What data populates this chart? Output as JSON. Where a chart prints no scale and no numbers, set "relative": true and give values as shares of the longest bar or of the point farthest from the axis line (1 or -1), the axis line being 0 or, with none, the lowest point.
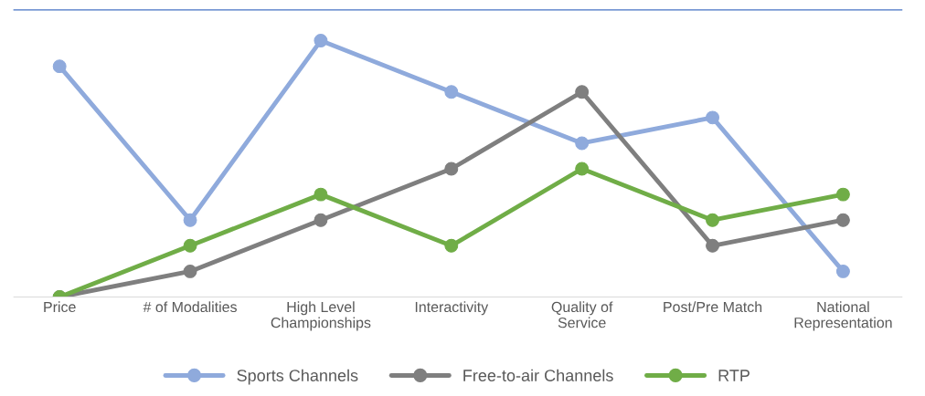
{
  "chart_data": {
    "type": "line",
    "relative": true,
    "categories": [
      "Price",
      "# of Modalities",
      "High Level\nChampionships",
      "Interactivity",
      "Quality of\nService",
      "Post/Pre Match",
      "National\nRepresentation"
    ],
    "series": [
      {
        "name": "Sports Channels",
        "color": "#8faadc",
        "values": [
          0.9,
          0.3,
          1.0,
          0.8,
          0.6,
          0.7,
          0.1
        ]
      },
      {
        "name": "Free-to-air Channels",
        "color": "#7f7f7f",
        "values": [
          0,
          0.1,
          0.3,
          0.5,
          0.8,
          0.2,
          0.3
        ]
      },
      {
        "name": "RTP",
        "color": "#70ad47",
        "values": [
          0,
          0.2,
          0.4,
          0.2,
          0.5,
          0.3,
          0.4
        ]
      }
    ],
    "marker": "circle",
    "line_style": "solid",
    "legend": "bottom",
    "grid": false
  }
}
